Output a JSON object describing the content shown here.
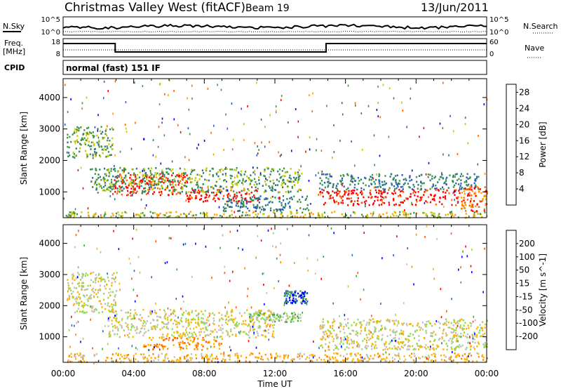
{
  "header": {
    "station": "Christmas Valley West (fitACF)",
    "beam": "Beam 19",
    "date": "13/Jun/2011"
  },
  "strip_labels": {
    "nsky": "N.Sky",
    "nsearch": "N.Search",
    "freq_line1": "Freq.",
    "freq_line2": "[MHz]",
    "nave": "Nave",
    "cpid": "CPID",
    "cpid_value": "normal (fast) 151 IF"
  },
  "strip_ticks": {
    "noise_left": [
      "10^5",
      "10^0"
    ],
    "noise_right": [
      "10^5",
      "10^0"
    ],
    "freq_left": [
      "18",
      "8"
    ],
    "nave_right": [
      "60",
      "0"
    ]
  },
  "colors": {
    "power_scale": [
      "#0000ff",
      "#2b5cc0",
      "#2d7a7a",
      "#3c9a3c",
      "#c8c800",
      "#ffa000",
      "#ff6400",
      "#ff0000"
    ],
    "velocity_scale": [
      "#ff0000",
      "#ff5a00",
      "#ff8c00",
      "#ffb400",
      "#c0c0b8",
      "#90dc50",
      "#3aa83a",
      "#2b6ab8",
      "#0000ff"
    ]
  },
  "chart_data": [
    {
      "type": "heatmap",
      "title": "",
      "xlabel": "Time UT",
      "ylabel": "Slant Range [km]",
      "x_ticks": [
        "00:00",
        "04:00",
        "08:00",
        "12:00",
        "16:00",
        "20:00",
        "00:00"
      ],
      "y_ticks": [
        1000,
        2000,
        3000,
        4000
      ],
      "xlim_hours": [
        0,
        24
      ],
      "ylim_km": [
        180,
        4600
      ],
      "colorbar": {
        "label": "Power [dB]",
        "ticks": [
          4,
          8,
          12,
          16,
          20,
          24,
          28
        ],
        "range": [
          0,
          30
        ]
      },
      "scatter_regions": [
        {
          "t": [
            0.2,
            2.8
          ],
          "r": [
            2100,
            3100
          ],
          "level": 3
        },
        {
          "t": [
            2.8,
            7.0
          ],
          "r": [
            900,
            1600
          ],
          "level": 7
        },
        {
          "t": [
            7.0,
            11.0
          ],
          "r": [
            700,
            1100
          ],
          "level": 7
        },
        {
          "t": [
            1.5,
            13.5
          ],
          "r": [
            1000,
            1800
          ],
          "level": 3
        },
        {
          "t": [
            9.0,
            14.0
          ],
          "r": [
            400,
            900
          ],
          "level": 2
        },
        {
          "t": [
            14.5,
            22.5
          ],
          "r": [
            600,
            1100
          ],
          "level": 7
        },
        {
          "t": [
            14.5,
            23.5
          ],
          "r": [
            1100,
            1600
          ],
          "level": 2
        },
        {
          "t": [
            22.5,
            24.0
          ],
          "r": [
            400,
            1200
          ],
          "level": 6
        },
        {
          "t": [
            0.0,
            24.0
          ],
          "r": [
            200,
            400
          ],
          "level": 4
        }
      ]
    },
    {
      "type": "heatmap",
      "title": "",
      "xlabel": "Time UT",
      "ylabel": "Slant Range [km]",
      "x_ticks": [
        "00:00",
        "04:00",
        "08:00",
        "12:00",
        "16:00",
        "20:00",
        "00:00"
      ],
      "y_ticks": [
        1000,
        2000,
        3000,
        4000
      ],
      "xlim_hours": [
        0,
        24
      ],
      "ylim_km": [
        180,
        4600
      ],
      "colorbar": {
        "label": "Velocity [m s^-1]",
        "ticks": [
          200,
          100,
          50,
          15,
          -15,
          -50,
          -100,
          -200
        ],
        "range": [
          -250,
          250
        ]
      },
      "scatter_regions": [
        {
          "t": [
            0.2,
            3.0
          ],
          "r": [
            1800,
            3100
          ],
          "level": 4
        },
        {
          "t": [
            2.5,
            12.0
          ],
          "r": [
            1000,
            1900
          ],
          "level": 4
        },
        {
          "t": [
            4.5,
            9.0
          ],
          "r": [
            600,
            1000
          ],
          "level": 2
        },
        {
          "t": [
            10.5,
            13.5
          ],
          "r": [
            1500,
            1800
          ],
          "level": 5
        },
        {
          "t": [
            12.5,
            13.8
          ],
          "r": [
            2100,
            2500
          ],
          "level": 7
        },
        {
          "t": [
            14.5,
            24.0
          ],
          "r": [
            600,
            1600
          ],
          "level": 4
        },
        {
          "t": [
            0.0,
            24.0
          ],
          "r": [
            200,
            500
          ],
          "level": 3
        }
      ]
    }
  ]
}
